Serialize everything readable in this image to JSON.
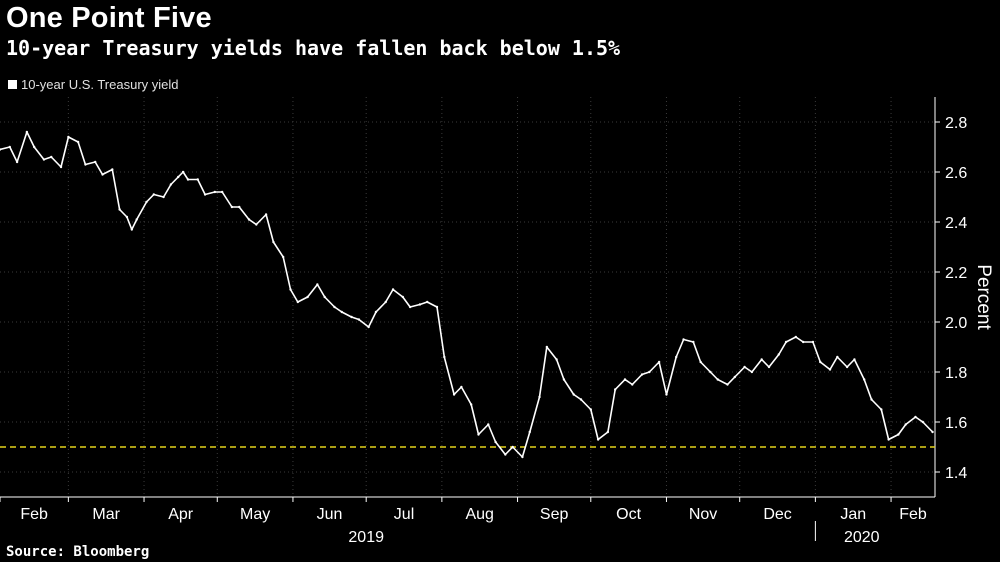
{
  "header": {
    "title": "One Point Five",
    "subtitle": "10-year Treasury yields have fallen back below 1.5%"
  },
  "footer": {
    "source": "Source: Bloomberg"
  },
  "colors": {
    "background": "#000000",
    "line": "#ffffff",
    "grid": "#3a3a3a",
    "reference": "#e3d21b"
  },
  "chart_data": {
    "type": "line",
    "title": "One Point Five",
    "subtitle": "10-year Treasury yields have fallen back below 1.5%",
    "ylabel": "Percent",
    "ylim": [
      1.3,
      2.9
    ],
    "yticks": [
      1.4,
      1.6,
      1.8,
      2.0,
      2.2,
      2.4,
      2.6,
      2.8
    ],
    "y_axis_side": "right",
    "grid": true,
    "legend_position": "top-left",
    "xlim": [
      "2019-02-01",
      "2020-02-19"
    ],
    "month_ticks": [
      {
        "date": "2019-02-01",
        "label": "Feb"
      },
      {
        "date": "2019-03-01",
        "label": "Mar"
      },
      {
        "date": "2019-04-01",
        "label": "Apr"
      },
      {
        "date": "2019-05-01",
        "label": "May"
      },
      {
        "date": "2019-06-01",
        "label": "Jun"
      },
      {
        "date": "2019-07-01",
        "label": "Jul"
      },
      {
        "date": "2019-08-01",
        "label": "Aug"
      },
      {
        "date": "2019-09-01",
        "label": "Sep"
      },
      {
        "date": "2019-10-01",
        "label": "Oct"
      },
      {
        "date": "2019-11-01",
        "label": "Nov"
      },
      {
        "date": "2019-12-01",
        "label": "Dec"
      },
      {
        "date": "2020-01-01",
        "label": "Jan"
      },
      {
        "date": "2020-02-01",
        "label": "Feb"
      }
    ],
    "year_labels": [
      {
        "label": "2019",
        "center": "2019-07-01"
      },
      {
        "label": "2020",
        "center": "2020-01-20"
      }
    ],
    "reference_line": {
      "y": 1.5,
      "style": "dashed"
    },
    "series": [
      {
        "name": "10-year U.S. Treasury yield",
        "x": [
          "2019-02-01",
          "2019-02-05",
          "2019-02-08",
          "2019-02-12",
          "2019-02-15",
          "2019-02-19",
          "2019-02-22",
          "2019-02-26",
          "2019-03-01",
          "2019-03-05",
          "2019-03-08",
          "2019-03-12",
          "2019-03-15",
          "2019-03-19",
          "2019-03-22",
          "2019-03-25",
          "2019-03-27",
          "2019-03-29",
          "2019-04-02",
          "2019-04-05",
          "2019-04-09",
          "2019-04-12",
          "2019-04-15",
          "2019-04-17",
          "2019-04-19",
          "2019-04-23",
          "2019-04-26",
          "2019-04-30",
          "2019-05-03",
          "2019-05-07",
          "2019-05-10",
          "2019-05-14",
          "2019-05-17",
          "2019-05-21",
          "2019-05-24",
          "2019-05-28",
          "2019-05-31",
          "2019-06-03",
          "2019-06-07",
          "2019-06-11",
          "2019-06-14",
          "2019-06-18",
          "2019-06-21",
          "2019-06-25",
          "2019-06-28",
          "2019-07-02",
          "2019-07-05",
          "2019-07-09",
          "2019-07-12",
          "2019-07-16",
          "2019-07-19",
          "2019-07-23",
          "2019-07-26",
          "2019-07-30",
          "2019-08-02",
          "2019-08-06",
          "2019-08-09",
          "2019-08-13",
          "2019-08-16",
          "2019-08-20",
          "2019-08-23",
          "2019-08-27",
          "2019-08-30",
          "2019-09-03",
          "2019-09-06",
          "2019-09-10",
          "2019-09-13",
          "2019-09-17",
          "2019-09-20",
          "2019-09-24",
          "2019-09-27",
          "2019-10-01",
          "2019-10-04",
          "2019-10-08",
          "2019-10-11",
          "2019-10-15",
          "2019-10-18",
          "2019-10-22",
          "2019-10-25",
          "2019-10-29",
          "2019-11-01",
          "2019-11-05",
          "2019-11-08",
          "2019-11-12",
          "2019-11-15",
          "2019-11-19",
          "2019-11-22",
          "2019-11-26",
          "2019-11-29",
          "2019-12-03",
          "2019-12-06",
          "2019-12-10",
          "2019-12-13",
          "2019-12-17",
          "2019-12-20",
          "2019-12-24",
          "2019-12-27",
          "2019-12-31",
          "2020-01-03",
          "2020-01-07",
          "2020-01-10",
          "2020-01-14",
          "2020-01-17",
          "2020-01-21",
          "2020-01-24",
          "2020-01-28",
          "2020-01-31",
          "2020-02-04",
          "2020-02-07",
          "2020-02-11",
          "2020-02-14",
          "2020-02-18"
        ],
        "values": [
          2.69,
          2.7,
          2.64,
          2.76,
          2.7,
          2.65,
          2.66,
          2.62,
          2.74,
          2.72,
          2.63,
          2.64,
          2.59,
          2.61,
          2.45,
          2.42,
          2.37,
          2.41,
          2.48,
          2.51,
          2.5,
          2.55,
          2.58,
          2.6,
          2.57,
          2.57,
          2.51,
          2.52,
          2.52,
          2.46,
          2.46,
          2.41,
          2.39,
          2.43,
          2.32,
          2.26,
          2.13,
          2.08,
          2.1,
          2.15,
          2.1,
          2.06,
          2.04,
          2.02,
          2.01,
          1.98,
          2.04,
          2.08,
          2.13,
          2.1,
          2.06,
          2.07,
          2.08,
          2.06,
          1.86,
          1.71,
          1.74,
          1.67,
          1.55,
          1.59,
          1.52,
          1.47,
          1.5,
          1.46,
          1.56,
          1.7,
          1.9,
          1.85,
          1.77,
          1.71,
          1.69,
          1.65,
          1.53,
          1.56,
          1.73,
          1.77,
          1.75,
          1.79,
          1.8,
          1.84,
          1.71,
          1.86,
          1.93,
          1.92,
          1.84,
          1.8,
          1.77,
          1.75,
          1.78,
          1.82,
          1.8,
          1.85,
          1.82,
          1.87,
          1.92,
          1.94,
          1.92,
          1.92,
          1.84,
          1.81,
          1.86,
          1.82,
          1.85,
          1.77,
          1.69,
          1.65,
          1.53,
          1.55,
          1.59,
          1.62,
          1.6,
          1.56
        ]
      }
    ]
  }
}
